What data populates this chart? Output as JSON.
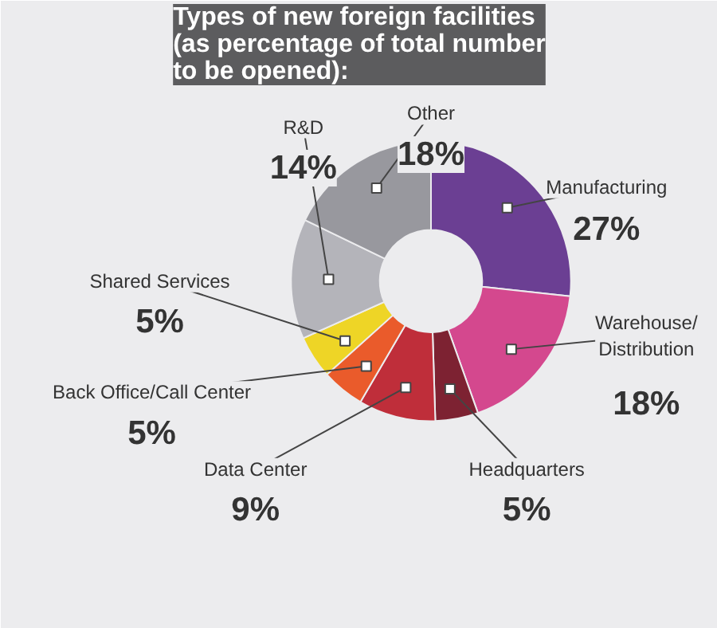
{
  "chart_data": {
    "type": "donut",
    "title": "Types of new foreign facilities (as percentage of total number to be opened):",
    "categories": [
      "Manufacturing",
      "Warehouse/Distribution",
      "Headquarters",
      "Data Center",
      "Back Office/Call Center",
      "Shared Services",
      "R&D",
      "Other"
    ],
    "values": [
      27,
      18,
      5,
      9,
      5,
      5,
      14,
      18
    ],
    "colors": [
      "#6b3f93",
      "#d4488e",
      "#7d2232",
      "#bf2e3a",
      "#ea5b2b",
      "#eed526",
      "#b4b4ba",
      "#98989e"
    ],
    "value_labels": [
      "27%",
      "18%",
      "5%",
      "9%",
      "5%",
      "5%",
      "14%",
      "18%"
    ]
  }
}
